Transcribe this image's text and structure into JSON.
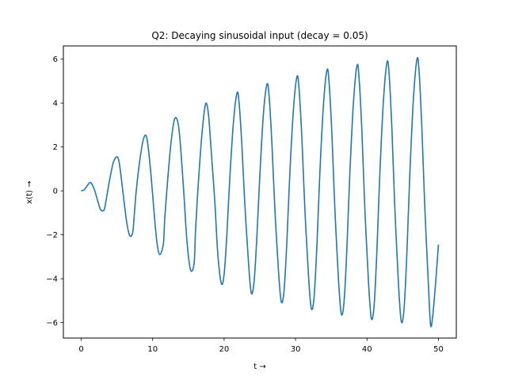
{
  "chart_data": {
    "type": "line",
    "title": "Q2: Decaying sinusoidal input (decay = 0.05)",
    "xlabel": "t →",
    "ylabel": "x(t) →",
    "xlim": [
      -2.5,
      52.5
    ],
    "ylim": [
      -6.7,
      6.6
    ],
    "xticks": [
      0,
      10,
      20,
      30,
      40,
      50
    ],
    "yticks": [
      -6,
      -4,
      -2,
      0,
      2,
      4,
      6
    ],
    "xtick_labels": [
      "0",
      "10",
      "20",
      "30",
      "40",
      "50"
    ],
    "ytick_labels": [
      "−6",
      "−4",
      "−2",
      "0",
      "2",
      "4",
      "6"
    ],
    "grid": false,
    "series": [
      {
        "color": "#1f77b4",
        "x": [
          0,
          0.4,
          0.8,
          1.2,
          1.5,
          1.9,
          2.3,
          2.7,
          3.1,
          3.3,
          3.6,
          4.0,
          4.5,
          5.0,
          5.3,
          5.6,
          6.0,
          6.4,
          6.8,
          7.2,
          7.4,
          7.7,
          8.2,
          8.7,
          9.1,
          9.4,
          9.8,
          10.2,
          10.6,
          11.0,
          11.5,
          11.7,
          12.1,
          12.6,
          13.1,
          13.6,
          14.0,
          14.4,
          14.8,
          15.3,
          15.8,
          16.0,
          16.4,
          16.9,
          17.4,
          17.8,
          18.2,
          18.7,
          19.1,
          19.6,
          20.0,
          20.4,
          20.8,
          21.3,
          21.8,
          22.1,
          22.5,
          22.9,
          23.4,
          23.8,
          24.2,
          24.6,
          25.0,
          25.5,
          26.0,
          26.3,
          26.7,
          27.1,
          27.6,
          28.0,
          28.4,
          28.8,
          29.2,
          29.7,
          30.2,
          30.5,
          30.9,
          31.3,
          31.8,
          32.2,
          32.6,
          33.0,
          33.4,
          33.9,
          34.4,
          34.7,
          35.1,
          35.5,
          36.0,
          36.4,
          36.8,
          37.2,
          37.6,
          38.1,
          38.6,
          38.9,
          39.3,
          39.7,
          40.2,
          40.6,
          41.0,
          41.4,
          41.8,
          42.3,
          42.8,
          43.1,
          43.5,
          43.9,
          44.4,
          44.8,
          45.2,
          45.6,
          46.0,
          46.5,
          47.0,
          47.3,
          47.7,
          48.1,
          48.6,
          48.9,
          49.2,
          49.6,
          50.0
        ],
        "y": [
          0.0,
          0.05,
          0.22,
          0.38,
          0.3,
          0.0,
          -0.45,
          -0.85,
          -0.9,
          -0.75,
          -0.2,
          0.55,
          1.3,
          1.55,
          1.3,
          0.6,
          -0.5,
          -1.5,
          -2.05,
          -1.9,
          -1.2,
          0.0,
          1.4,
          2.35,
          2.5,
          1.9,
          0.6,
          -1.0,
          -2.35,
          -2.9,
          -2.4,
          -1.2,
          0.5,
          2.3,
          3.3,
          3.0,
          1.6,
          -0.3,
          -2.3,
          -3.6,
          -3.3,
          -1.8,
          0.4,
          2.6,
          3.95,
          3.5,
          1.8,
          -0.5,
          -2.8,
          -4.2,
          -3.8,
          -1.9,
          0.6,
          3.1,
          4.45,
          4.0,
          2.0,
          -0.6,
          -3.2,
          -4.65,
          -4.1,
          -2.0,
          0.7,
          3.5,
          4.85,
          4.3,
          2.1,
          -0.8,
          -3.6,
          -5.05,
          -4.5,
          -2.2,
          0.8,
          3.7,
          5.2,
          4.6,
          2.3,
          -0.8,
          -3.8,
          -5.35,
          -4.8,
          -2.4,
          0.8,
          3.9,
          5.5,
          4.9,
          2.5,
          -0.8,
          -4.0,
          -5.6,
          -5.0,
          -2.5,
          0.8,
          4.0,
          5.7,
          5.1,
          2.6,
          -0.8,
          -4.1,
          -5.8,
          -5.2,
          -2.6,
          0.8,
          4.1,
          5.85,
          5.3,
          2.7,
          -0.8,
          -4.2,
          -5.95,
          -5.3,
          -2.7,
          0.8,
          4.2,
          6.0,
          5.4,
          2.7,
          -0.8,
          -4.3,
          -6.1,
          -5.7,
          -4.2,
          -2.45
        ]
      }
    ]
  }
}
